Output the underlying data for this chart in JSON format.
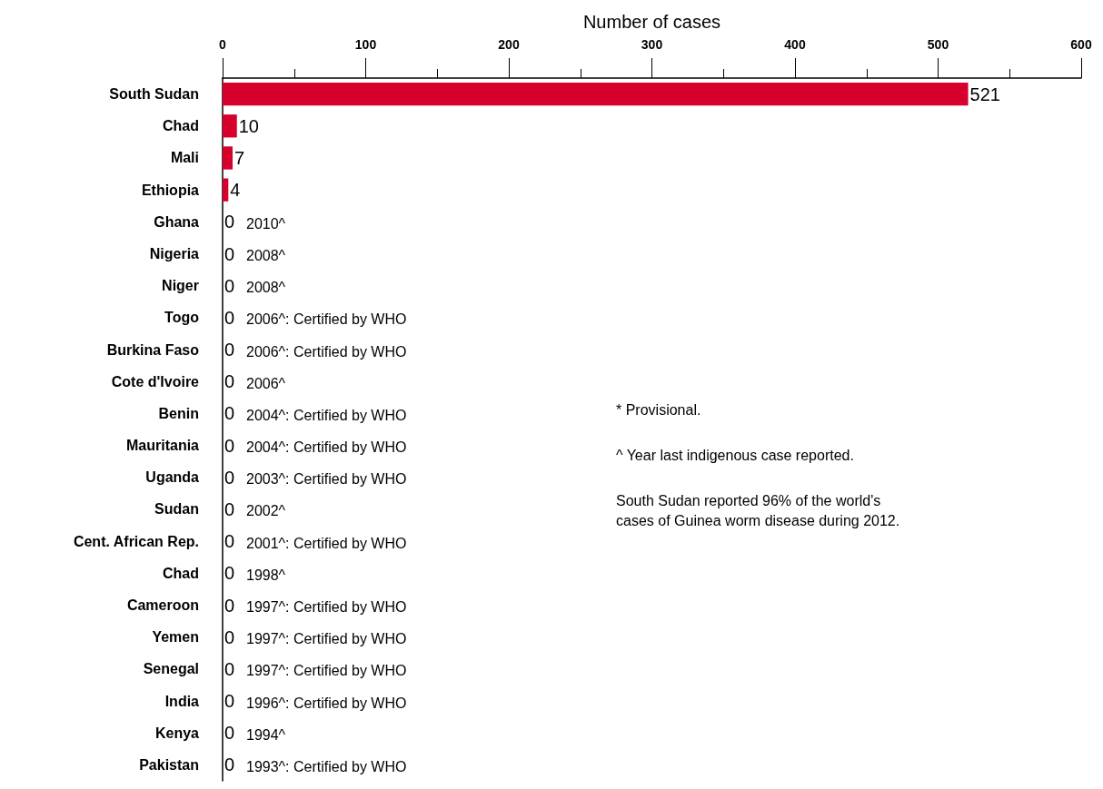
{
  "chart_data": {
    "type": "bar",
    "orientation": "horizontal",
    "xlabel": "Number of cases",
    "categories": [
      "South Sudan",
      "Chad",
      "Mali",
      "Ethiopia",
      "Ghana",
      "Nigeria",
      "Niger",
      "Togo",
      "Burkina Faso",
      "Cote d'Ivoire",
      "Benin",
      "Mauritania",
      "Uganda",
      "Sudan",
      "Cent. African Rep.",
      "Chad",
      "Cameroon",
      "Yemen",
      "Senegal",
      "India",
      "Kenya",
      "Pakistan"
    ],
    "values": [
      521,
      10,
      7,
      4,
      0,
      0,
      0,
      0,
      0,
      0,
      0,
      0,
      0,
      0,
      0,
      0,
      0,
      0,
      0,
      0,
      0,
      0
    ],
    "color": "#d7002d",
    "data_labels": true,
    "xlim": [
      0,
      600
    ],
    "xticks": [
      0,
      100,
      200,
      300,
      400,
      500,
      600
    ],
    "grid": false,
    "annotations": [
      "2010^",
      "2008^",
      "2008^",
      "2006^: Certified by WHO",
      "2006^: Certified by WHO",
      "2006^",
      "2004^: Certified by WHO",
      "2004^: Certified by WHO",
      "2003^: Certified by WHO",
      "2002^",
      "2001^: Certified by WHO",
      "1998^",
      "1997^: Certified by WHO",
      "1997^: Certified by WHO",
      "1997^: Certified by WHO",
      "1996^: Certified by WHO",
      "1994^",
      "1993^: Certified by WHO",
      "* Provisional.",
      "^ Year last indigenous case reported.",
      "South Sudan reported 96% of the world's\ncases of Guinea worm disease during 2012."
    ]
  }
}
